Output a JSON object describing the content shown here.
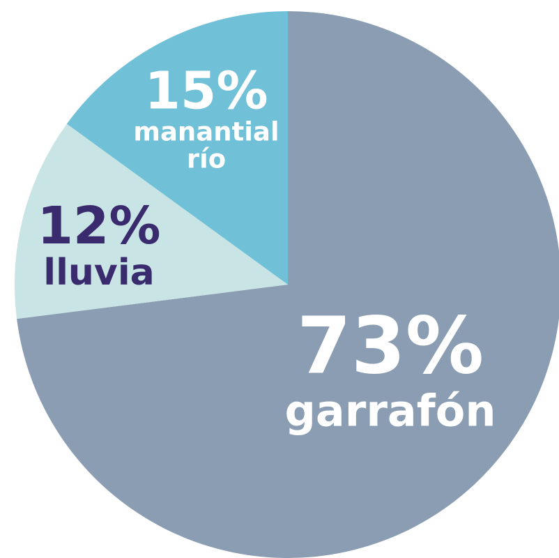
{
  "chart_data": {
    "type": "pie",
    "categories": [
      "garrafón",
      "lluvia",
      "manantial río"
    ],
    "values": [
      73,
      12,
      15
    ],
    "value_labels": [
      "73%",
      "12%",
      "15%"
    ],
    "colors": [
      "#8a9db3",
      "#c8e4e4",
      "#70c0d8"
    ],
    "label_colors": [
      "#ffffff",
      "#3a2a6e",
      "#ffffff"
    ]
  }
}
